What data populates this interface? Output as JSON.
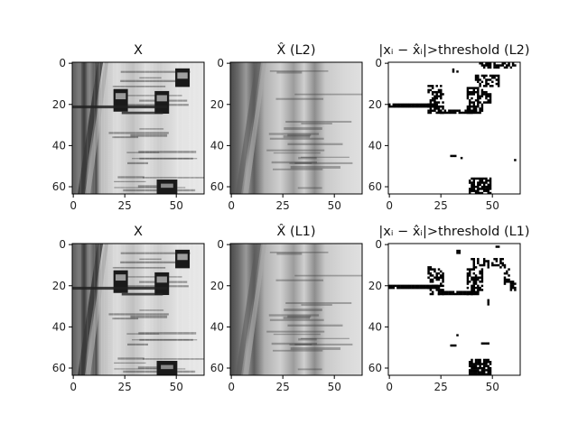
{
  "figure": {
    "panels": [
      {
        "id": "p11",
        "title": "X",
        "kind": "road",
        "row": 0,
        "col": 0
      },
      {
        "id": "p12",
        "title": "X̂ (L2)",
        "kind": "recon",
        "row": 0,
        "col": 1
      },
      {
        "id": "p13",
        "title": "|xᵢ − x̂ᵢ|>threshold (L2)",
        "kind": "mask",
        "row": 0,
        "col": 2
      },
      {
        "id": "p21",
        "title": "X",
        "kind": "road",
        "row": 1,
        "col": 0
      },
      {
        "id": "p22",
        "title": "X̂ (L1)",
        "kind": "recon",
        "row": 1,
        "col": 1
      },
      {
        "id": "p23",
        "title": "|xᵢ − x̂ᵢ|>threshold (L1)",
        "kind": "mask",
        "row": 1,
        "col": 2
      }
    ],
    "x_ticks": [
      "0",
      "25",
      "50"
    ],
    "y_ticks": [
      "0",
      "20",
      "40",
      "60"
    ],
    "colors": {
      "axis": "#000000",
      "mask_on": "#000000",
      "mask_off": "#ffffff"
    }
  },
  "chart_data": [
    {
      "type": "heatmap",
      "title": "X",
      "xlim": [
        0,
        63
      ],
      "ylim": [
        63,
        0
      ],
      "xticks": [
        0,
        25,
        50
      ],
      "yticks": [
        0,
        20,
        40,
        60
      ]
    },
    {
      "type": "heatmap",
      "title": "X̂ (L2)",
      "xlim": [
        0,
        63
      ],
      "ylim": [
        63,
        0
      ],
      "xticks": [
        0,
        25,
        50
      ],
      "yticks": [
        0,
        20,
        40,
        60
      ]
    },
    {
      "type": "heatmap",
      "title": "|xᵢ − x̂ᵢ|>threshold (L2)",
      "xlim": [
        0,
        63
      ],
      "ylim": [
        63,
        0
      ],
      "xticks": [
        0,
        25,
        50
      ],
      "yticks": [
        0,
        20,
        40,
        60
      ]
    },
    {
      "type": "heatmap",
      "title": "X",
      "xlim": [
        0,
        63
      ],
      "ylim": [
        63,
        0
      ],
      "xticks": [
        0,
        25,
        50
      ],
      "yticks": [
        0,
        20,
        40,
        60
      ]
    },
    {
      "type": "heatmap",
      "title": "X̂ (L1)",
      "xlim": [
        0,
        63
      ],
      "ylim": [
        63,
        0
      ],
      "xticks": [
        0,
        25,
        50
      ],
      "yticks": [
        0,
        20,
        40,
        60
      ]
    },
    {
      "type": "heatmap",
      "title": "|xᵢ − x̂ᵢ|>threshold (L1)",
      "xlim": [
        0,
        63
      ],
      "ylim": [
        63,
        0
      ],
      "xticks": [
        0,
        25,
        50
      ],
      "yticks": [
        0,
        20,
        40,
        60
      ]
    }
  ]
}
